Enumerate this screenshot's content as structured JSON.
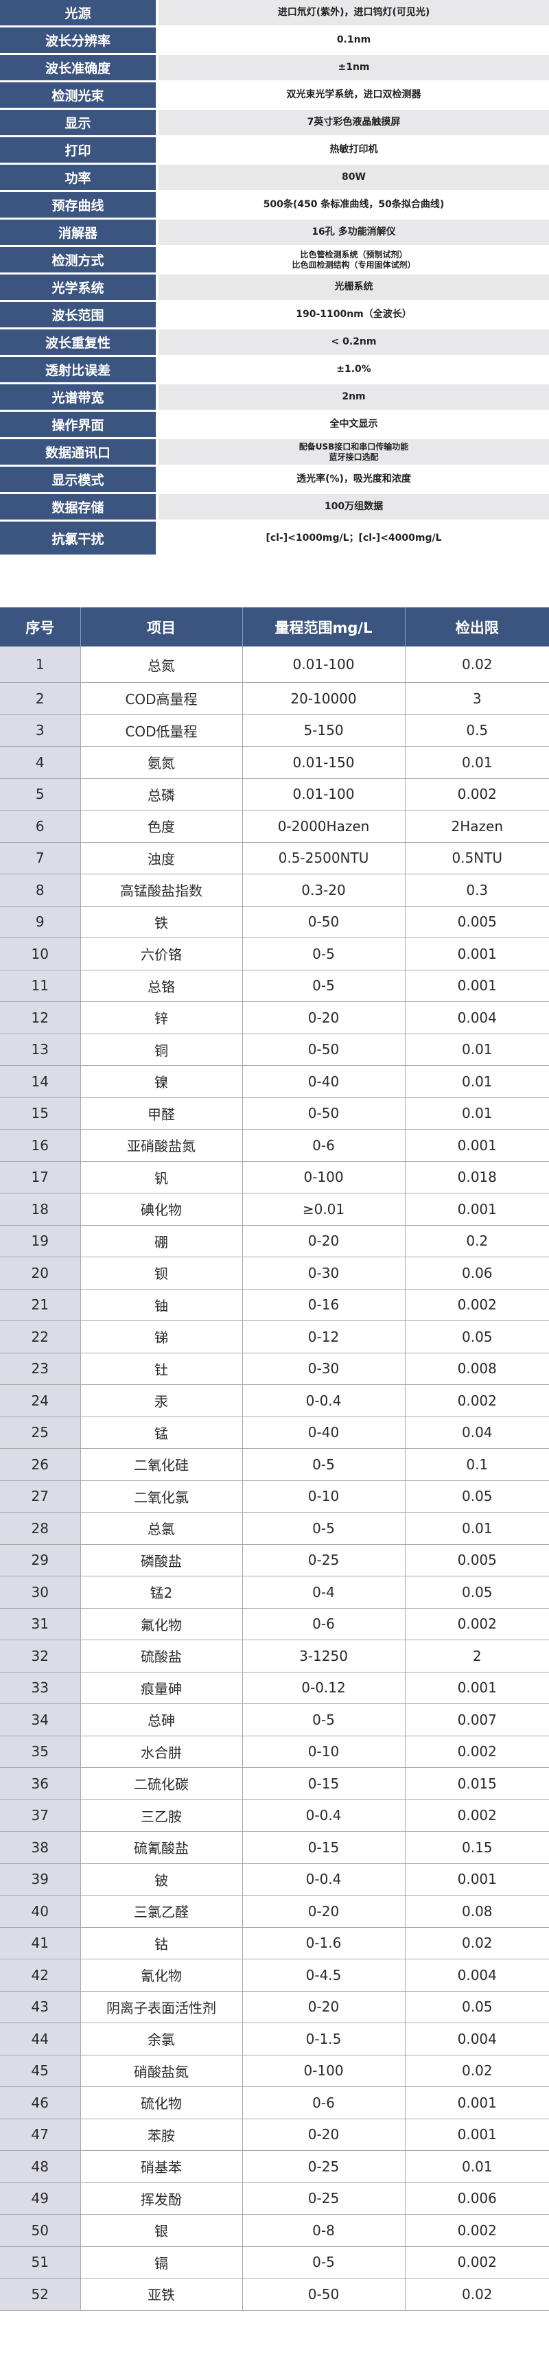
{
  "specs": [
    {
      "label": "光源",
      "value": [
        "进口氘灯(紫外)，进口钨灯(可见光)"
      ]
    },
    {
      "label": "波长分辨率",
      "value": [
        "0.1nm"
      ]
    },
    {
      "label": "波长准确度",
      "value": [
        "±1nm"
      ]
    },
    {
      "label": "检测光束",
      "value": [
        "双光束光学系统，进口双检测器"
      ]
    },
    {
      "label": "显示",
      "value": [
        "7英寸彩色液晶触摸屏"
      ]
    },
    {
      "label": "打印",
      "value": [
        "热敏打印机"
      ]
    },
    {
      "label": "功率",
      "value": [
        "80W"
      ]
    },
    {
      "label": "预存曲线",
      "value": [
        "500条(450 条标准曲线，50条拟合曲线)"
      ]
    },
    {
      "label": "消解器",
      "value": [
        "16孔 多功能消解仪"
      ]
    },
    {
      "label": "检测方式",
      "value": [
        "比色管检测系统（预制试剂）",
        "比色皿检测结构（专用固体试剂）"
      ]
    },
    {
      "label": "光学系统",
      "value": [
        "光栅系统"
      ]
    },
    {
      "label": "波长范围",
      "value": [
        "190-1100nm（全波长）"
      ]
    },
    {
      "label": "波长重复性",
      "value": [
        "< 0.2nm"
      ]
    },
    {
      "label": "透射比误差",
      "value": [
        "±1.0%"
      ]
    },
    {
      "label": "光谱带宽",
      "value": [
        "2nm"
      ]
    },
    {
      "label": "操作界面",
      "value": [
        "全中文显示"
      ]
    },
    {
      "label": "数据通讯口",
      "value": [
        "配备USB接口和串口传输功能",
        "蓝牙接口选配"
      ]
    },
    {
      "label": "显示模式",
      "value": [
        "透光率(%)，吸光度和浓度"
      ]
    },
    {
      "label": "数据存储",
      "value": [
        "100万组数据"
      ]
    },
    {
      "label": "抗氯干扰",
      "value": [
        "[cl-]<1000mg/L；[cl-]<4000mg/L"
      ]
    }
  ],
  "table": {
    "headers": [
      "序号",
      "项目",
      "量程范围mg/L",
      "检出限"
    ],
    "rows": [
      [
        "1",
        "总氮",
        "0.01-100",
        "0.02"
      ],
      [
        "2",
        "COD高量程",
        "20-10000",
        "3"
      ],
      [
        "3",
        "COD低量程",
        "5-150",
        "0.5"
      ],
      [
        "4",
        "氨氮",
        "0.01-150",
        "0.01"
      ],
      [
        "5",
        "总磷",
        "0.01-100",
        "0.002"
      ],
      [
        "6",
        "色度",
        "0-2000Hazen",
        "2Hazen"
      ],
      [
        "7",
        "浊度",
        "0.5-2500NTU",
        "0.5NTU"
      ],
      [
        "8",
        "高锰酸盐指数",
        "0.3-20",
        "0.3"
      ],
      [
        "9",
        "铁",
        "0-50",
        "0.005"
      ],
      [
        "10",
        "六价铬",
        "0-5",
        "0.001"
      ],
      [
        "11",
        "总铬",
        "0-5",
        "0.001"
      ],
      [
        "12",
        "锌",
        "0-20",
        "0.004"
      ],
      [
        "13",
        "铜",
        "0-50",
        "0.01"
      ],
      [
        "14",
        "镍",
        "0-40",
        "0.01"
      ],
      [
        "15",
        "甲醛",
        "0-50",
        "0.01"
      ],
      [
        "16",
        "亚硝酸盐氮",
        "0-6",
        "0.001"
      ],
      [
        "17",
        "钒",
        "0-100",
        "0.018"
      ],
      [
        "18",
        "碘化物",
        "≥0.01",
        "0.001"
      ],
      [
        "19",
        "硼",
        "0-20",
        "0.2"
      ],
      [
        "20",
        "钡",
        "0-30",
        "0.06"
      ],
      [
        "21",
        "铀",
        "0-16",
        "0.002"
      ],
      [
        "22",
        "锑",
        "0-12",
        "0.05"
      ],
      [
        "23",
        "钍",
        "0-30",
        "0.008"
      ],
      [
        "24",
        "汞",
        "0-0.4",
        "0.002"
      ],
      [
        "25",
        "锰",
        "0-40",
        "0.04"
      ],
      [
        "26",
        "二氧化硅",
        "0-5",
        "0.1"
      ],
      [
        "27",
        "二氧化氯",
        "0-10",
        "0.05"
      ],
      [
        "28",
        "总氯",
        "0-5",
        "0.01"
      ],
      [
        "29",
        "磷酸盐",
        "0-25",
        "0.005"
      ],
      [
        "30",
        "锰2",
        "0-4",
        "0.05"
      ],
      [
        "31",
        "氟化物",
        "0-6",
        "0.002"
      ],
      [
        "32",
        "硫酸盐",
        "3-1250",
        "2"
      ],
      [
        "33",
        "痕量砷",
        "0-0.12",
        "0.001"
      ],
      [
        "34",
        "总砷",
        "0-5",
        "0.007"
      ],
      [
        "35",
        "水合肼",
        "0-10",
        "0.002"
      ],
      [
        "36",
        "二硫化碳",
        "0-15",
        "0.015"
      ],
      [
        "37",
        "三乙胺",
        "0-0.4",
        "0.002"
      ],
      [
        "38",
        "硫氰酸盐",
        "0-15",
        "0.15"
      ],
      [
        "39",
        "铍",
        "0-0.4",
        "0.001"
      ],
      [
        "40",
        "三氯乙醛",
        "0-20",
        "0.08"
      ],
      [
        "41",
        "钴",
        "0-1.6",
        "0.02"
      ],
      [
        "42",
        "氰化物",
        "0-4.5",
        "0.004"
      ],
      [
        "43",
        "阴离子表面活性剂",
        "0-20",
        "0.05"
      ],
      [
        "44",
        "余氯",
        "0-1.5",
        "0.004"
      ],
      [
        "45",
        "硝酸盐氮",
        "0-100",
        "0.02"
      ],
      [
        "46",
        "硫化物",
        "0-6",
        "0.001"
      ],
      [
        "47",
        "苯胺",
        "0-20",
        "0.001"
      ],
      [
        "48",
        "硝基苯",
        "0-25",
        "0.01"
      ],
      [
        "49",
        "挥发酚",
        "0-25",
        "0.006"
      ],
      [
        "50",
        "银",
        "0-8",
        "0.002"
      ],
      [
        "51",
        "镉",
        "0-5",
        "0.002"
      ],
      [
        "52",
        "亚铁",
        "0-50",
        "0.02"
      ]
    ]
  },
  "colors": {
    "header_bg": "#3b5580",
    "index_col_bg": "#dcdce6",
    "alt_row_bg": "#e8e8ea"
  }
}
